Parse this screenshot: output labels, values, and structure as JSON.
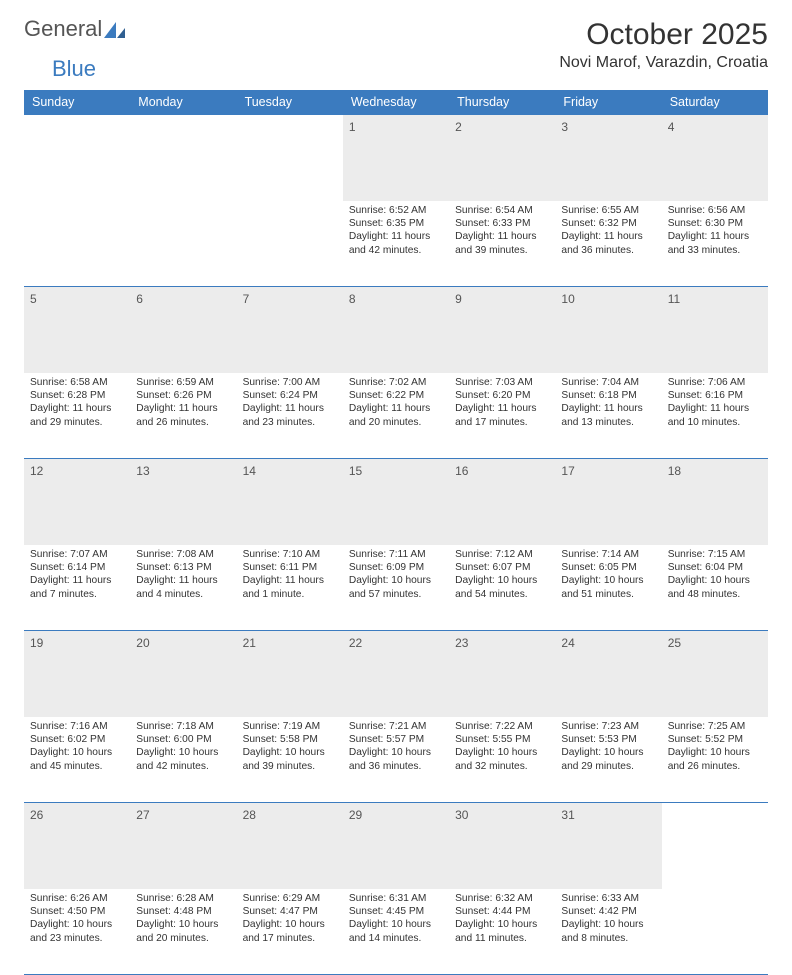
{
  "logo": {
    "word1": "General",
    "word2": "Blue"
  },
  "title": "October 2025",
  "subtitle": "Novi Marof, Varazdin, Croatia",
  "styling": {
    "header_bg": "#3b7bbf",
    "header_text": "#ffffff",
    "border_color": "#3b7bbf",
    "daynum_bg": "#ececec",
    "body_font_size": 10.2,
    "daynum_font_size": 12,
    "title_font_size": 30,
    "subtitle_font_size": 16,
    "dayheader_font_size": 12.5,
    "page_bg": "#ffffff",
    "text_color": "#333333"
  },
  "day_headers": [
    "Sunday",
    "Monday",
    "Tuesday",
    "Wednesday",
    "Thursday",
    "Friday",
    "Saturday"
  ],
  "weeks": [
    [
      {
        "n": "",
        "lines": []
      },
      {
        "n": "",
        "lines": []
      },
      {
        "n": "",
        "lines": []
      },
      {
        "n": "1",
        "lines": [
          "Sunrise: 6:52 AM",
          "Sunset: 6:35 PM",
          "Daylight: 11 hours",
          "and 42 minutes."
        ]
      },
      {
        "n": "2",
        "lines": [
          "Sunrise: 6:54 AM",
          "Sunset: 6:33 PM",
          "Daylight: 11 hours",
          "and 39 minutes."
        ]
      },
      {
        "n": "3",
        "lines": [
          "Sunrise: 6:55 AM",
          "Sunset: 6:32 PM",
          "Daylight: 11 hours",
          "and 36 minutes."
        ]
      },
      {
        "n": "4",
        "lines": [
          "Sunrise: 6:56 AM",
          "Sunset: 6:30 PM",
          "Daylight: 11 hours",
          "and 33 minutes."
        ]
      }
    ],
    [
      {
        "n": "5",
        "lines": [
          "Sunrise: 6:58 AM",
          "Sunset: 6:28 PM",
          "Daylight: 11 hours",
          "and 29 minutes."
        ]
      },
      {
        "n": "6",
        "lines": [
          "Sunrise: 6:59 AM",
          "Sunset: 6:26 PM",
          "Daylight: 11 hours",
          "and 26 minutes."
        ]
      },
      {
        "n": "7",
        "lines": [
          "Sunrise: 7:00 AM",
          "Sunset: 6:24 PM",
          "Daylight: 11 hours",
          "and 23 minutes."
        ]
      },
      {
        "n": "8",
        "lines": [
          "Sunrise: 7:02 AM",
          "Sunset: 6:22 PM",
          "Daylight: 11 hours",
          "and 20 minutes."
        ]
      },
      {
        "n": "9",
        "lines": [
          "Sunrise: 7:03 AM",
          "Sunset: 6:20 PM",
          "Daylight: 11 hours",
          "and 17 minutes."
        ]
      },
      {
        "n": "10",
        "lines": [
          "Sunrise: 7:04 AM",
          "Sunset: 6:18 PM",
          "Daylight: 11 hours",
          "and 13 minutes."
        ]
      },
      {
        "n": "11",
        "lines": [
          "Sunrise: 7:06 AM",
          "Sunset: 6:16 PM",
          "Daylight: 11 hours",
          "and 10 minutes."
        ]
      }
    ],
    [
      {
        "n": "12",
        "lines": [
          "Sunrise: 7:07 AM",
          "Sunset: 6:14 PM",
          "Daylight: 11 hours",
          "and 7 minutes."
        ]
      },
      {
        "n": "13",
        "lines": [
          "Sunrise: 7:08 AM",
          "Sunset: 6:13 PM",
          "Daylight: 11 hours",
          "and 4 minutes."
        ]
      },
      {
        "n": "14",
        "lines": [
          "Sunrise: 7:10 AM",
          "Sunset: 6:11 PM",
          "Daylight: 11 hours",
          "and 1 minute."
        ]
      },
      {
        "n": "15",
        "lines": [
          "Sunrise: 7:11 AM",
          "Sunset: 6:09 PM",
          "Daylight: 10 hours",
          "and 57 minutes."
        ]
      },
      {
        "n": "16",
        "lines": [
          "Sunrise: 7:12 AM",
          "Sunset: 6:07 PM",
          "Daylight: 10 hours",
          "and 54 minutes."
        ]
      },
      {
        "n": "17",
        "lines": [
          "Sunrise: 7:14 AM",
          "Sunset: 6:05 PM",
          "Daylight: 10 hours",
          "and 51 minutes."
        ]
      },
      {
        "n": "18",
        "lines": [
          "Sunrise: 7:15 AM",
          "Sunset: 6:04 PM",
          "Daylight: 10 hours",
          "and 48 minutes."
        ]
      }
    ],
    [
      {
        "n": "19",
        "lines": [
          "Sunrise: 7:16 AM",
          "Sunset: 6:02 PM",
          "Daylight: 10 hours",
          "and 45 minutes."
        ]
      },
      {
        "n": "20",
        "lines": [
          "Sunrise: 7:18 AM",
          "Sunset: 6:00 PM",
          "Daylight: 10 hours",
          "and 42 minutes."
        ]
      },
      {
        "n": "21",
        "lines": [
          "Sunrise: 7:19 AM",
          "Sunset: 5:58 PM",
          "Daylight: 10 hours",
          "and 39 minutes."
        ]
      },
      {
        "n": "22",
        "lines": [
          "Sunrise: 7:21 AM",
          "Sunset: 5:57 PM",
          "Daylight: 10 hours",
          "and 36 minutes."
        ]
      },
      {
        "n": "23",
        "lines": [
          "Sunrise: 7:22 AM",
          "Sunset: 5:55 PM",
          "Daylight: 10 hours",
          "and 32 minutes."
        ]
      },
      {
        "n": "24",
        "lines": [
          "Sunrise: 7:23 AM",
          "Sunset: 5:53 PM",
          "Daylight: 10 hours",
          "and 29 minutes."
        ]
      },
      {
        "n": "25",
        "lines": [
          "Sunrise: 7:25 AM",
          "Sunset: 5:52 PM",
          "Daylight: 10 hours",
          "and 26 minutes."
        ]
      }
    ],
    [
      {
        "n": "26",
        "lines": [
          "Sunrise: 6:26 AM",
          "Sunset: 4:50 PM",
          "Daylight: 10 hours",
          "and 23 minutes."
        ]
      },
      {
        "n": "27",
        "lines": [
          "Sunrise: 6:28 AM",
          "Sunset: 4:48 PM",
          "Daylight: 10 hours",
          "and 20 minutes."
        ]
      },
      {
        "n": "28",
        "lines": [
          "Sunrise: 6:29 AM",
          "Sunset: 4:47 PM",
          "Daylight: 10 hours",
          "and 17 minutes."
        ]
      },
      {
        "n": "29",
        "lines": [
          "Sunrise: 6:31 AM",
          "Sunset: 4:45 PM",
          "Daylight: 10 hours",
          "and 14 minutes."
        ]
      },
      {
        "n": "30",
        "lines": [
          "Sunrise: 6:32 AM",
          "Sunset: 4:44 PM",
          "Daylight: 10 hours",
          "and 11 minutes."
        ]
      },
      {
        "n": "31",
        "lines": [
          "Sunrise: 6:33 AM",
          "Sunset: 4:42 PM",
          "Daylight: 10 hours",
          "and 8 minutes."
        ]
      },
      {
        "n": "",
        "lines": []
      }
    ]
  ]
}
